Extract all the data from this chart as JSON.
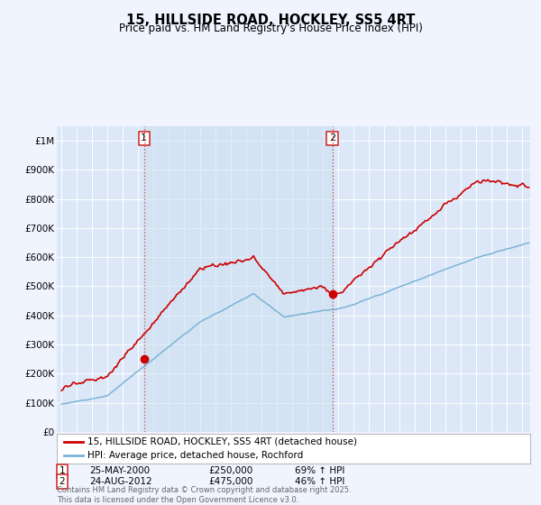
{
  "title": "15, HILLSIDE ROAD, HOCKLEY, SS5 4RT",
  "subtitle": "Price paid vs. HM Land Registry's House Price Index (HPI)",
  "background_color": "#f0f4ff",
  "plot_bg_color": "#dce8f8",
  "grid_color": "#ffffff",
  "red_line_color": "#cc0000",
  "blue_line_color": "#7ab4d4",
  "marker_color": "#cc0000",
  "sale1_date_num": 2000.38,
  "sale1_price": 250000,
  "sale1_label": "25-MAY-2000",
  "sale1_hpi_pct": "69% ↑ HPI",
  "sale2_date_num": 2012.63,
  "sale2_price": 475000,
  "sale2_label": "24-AUG-2012",
  "sale2_hpi_pct": "46% ↑ HPI",
  "legend_line1": "15, HILLSIDE ROAD, HOCKLEY, SS5 4RT (detached house)",
  "legend_line2": "HPI: Average price, detached house, Rochford",
  "footer": "Contains HM Land Registry data © Crown copyright and database right 2025.\nThis data is licensed under the Open Government Licence v3.0.",
  "ylabel_ticks": [
    0,
    100000,
    200000,
    300000,
    400000,
    500000,
    600000,
    700000,
    800000,
    900000,
    1000000
  ],
  "ylim": [
    0,
    1050000
  ],
  "xlim_start": 1994.7,
  "xlim_end": 2025.5,
  "label1": "1",
  "label2": "2"
}
